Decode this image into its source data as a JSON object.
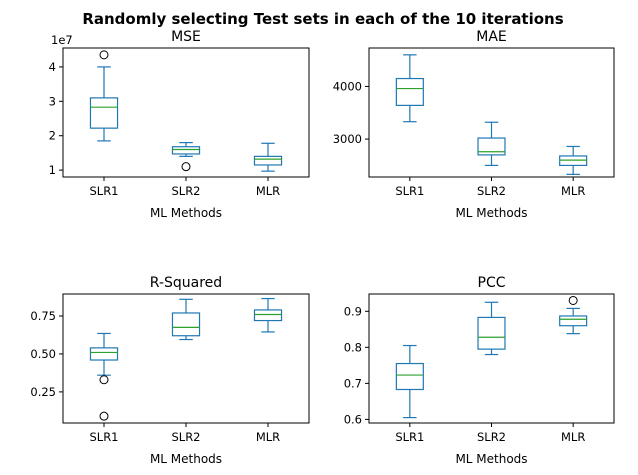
{
  "suptitle": "Randomly selecting Test sets in each of the 10 iterations",
  "box_color": "#1f77b4",
  "median_color": "#2ca02c",
  "chart_data": [
    {
      "type": "box",
      "title": "MSE",
      "xlabel": "ML Methods",
      "ylabel": "",
      "offset_label": "1e7",
      "categories": [
        "SLR1",
        "SLR2",
        "MLR"
      ],
      "ylim": [
        0.8,
        4.55
      ],
      "yticks": [
        1,
        2,
        3,
        4
      ],
      "ytick_labels": [
        "1",
        "2",
        "3",
        "4"
      ],
      "boxes": [
        {
          "whislo": 1.85,
          "q1": 2.22,
          "med": 2.83,
          "q3": 3.1,
          "whishi": 4.0,
          "fliers": [
            4.35
          ]
        },
        {
          "whislo": 1.4,
          "q1": 1.47,
          "med": 1.6,
          "q3": 1.68,
          "whishi": 1.8,
          "fliers": [
            1.1
          ]
        },
        {
          "whislo": 0.97,
          "q1": 1.15,
          "med": 1.32,
          "q3": 1.4,
          "whishi": 1.78,
          "fliers": []
        }
      ]
    },
    {
      "type": "box",
      "title": "MAE",
      "xlabel": "ML Methods",
      "ylabel": "",
      "categories": [
        "SLR1",
        "SLR2",
        "MLR"
      ],
      "ylim": [
        2280,
        4730
      ],
      "yticks": [
        3000,
        4000
      ],
      "ytick_labels": [
        "3000",
        "4000"
      ],
      "boxes": [
        {
          "whislo": 3330,
          "q1": 3640,
          "med": 3960,
          "q3": 4150,
          "whishi": 4600,
          "fliers": []
        },
        {
          "whislo": 2500,
          "q1": 2700,
          "med": 2760,
          "q3": 3020,
          "whishi": 3320,
          "fliers": []
        },
        {
          "whislo": 2330,
          "q1": 2500,
          "med": 2600,
          "q3": 2680,
          "whishi": 2860,
          "fliers": []
        }
      ]
    },
    {
      "type": "box",
      "title": "R-Squared",
      "xlabel": "ML Methods",
      "ylabel": "",
      "categories": [
        "SLR1",
        "SLR2",
        "MLR"
      ],
      "ylim": [
        0.045,
        0.895
      ],
      "yticks": [
        0.25,
        0.5,
        0.75
      ],
      "ytick_labels": [
        "0.25",
        "0.50",
        "0.75"
      ],
      "boxes": [
        {
          "whislo": 0.36,
          "q1": 0.46,
          "med": 0.51,
          "q3": 0.54,
          "whishi": 0.635,
          "fliers": [
            0.33,
            0.09
          ]
        },
        {
          "whislo": 0.595,
          "q1": 0.62,
          "med": 0.675,
          "q3": 0.77,
          "whishi": 0.86,
          "fliers": []
        },
        {
          "whislo": 0.645,
          "q1": 0.72,
          "med": 0.76,
          "q3": 0.79,
          "whishi": 0.865,
          "fliers": []
        }
      ]
    },
    {
      "type": "box",
      "title": "PCC",
      "xlabel": "ML Methods",
      "ylabel": "",
      "categories": [
        "SLR1",
        "SLR2",
        "MLR"
      ],
      "ylim": [
        0.59,
        0.948
      ],
      "yticks": [
        0.6,
        0.7,
        0.8,
        0.9
      ],
      "ytick_labels": [
        "0.6",
        "0.7",
        "0.8",
        "0.9"
      ],
      "boxes": [
        {
          "whislo": 0.605,
          "q1": 0.683,
          "med": 0.723,
          "q3": 0.755,
          "whishi": 0.805,
          "fliers": []
        },
        {
          "whislo": 0.78,
          "q1": 0.795,
          "med": 0.828,
          "q3": 0.883,
          "whishi": 0.925,
          "fliers": []
        },
        {
          "whislo": 0.838,
          "q1": 0.86,
          "med": 0.878,
          "q3": 0.887,
          "whishi": 0.908,
          "fliers": [
            0.93
          ]
        }
      ]
    }
  ]
}
